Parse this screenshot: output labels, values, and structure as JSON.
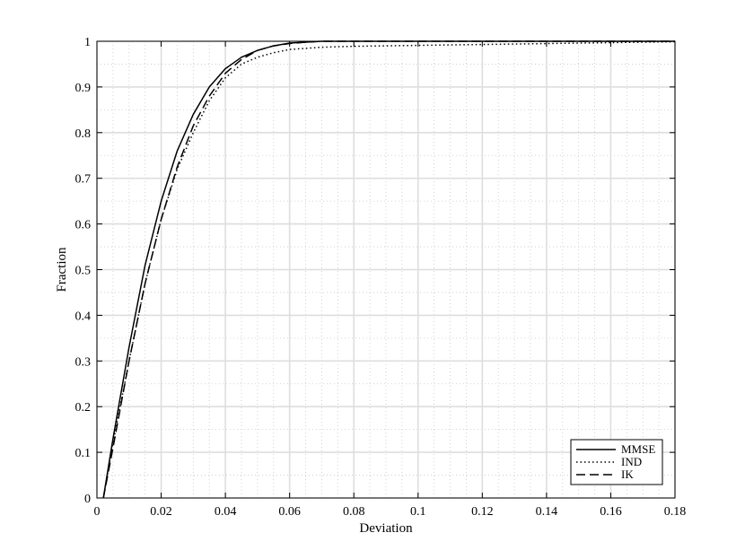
{
  "chart_data": {
    "type": "line",
    "title": "",
    "xlabel": "Deviation",
    "ylabel": "Fraction",
    "xlim": [
      0,
      0.18
    ],
    "ylim": [
      0,
      1
    ],
    "xticks": [
      0,
      0.02,
      0.04,
      0.06,
      0.08,
      0.1,
      0.12,
      0.14,
      0.16,
      0.18
    ],
    "xtick_labels": [
      "0",
      "0.02",
      "0.04",
      "0.06",
      "0.08",
      "0.1",
      "0.12",
      "0.14",
      "0.16",
      "0.18"
    ],
    "yticks": [
      0,
      0.1,
      0.2,
      0.3,
      0.4,
      0.5,
      0.6,
      0.7,
      0.8,
      0.9,
      1
    ],
    "ytick_labels": [
      "0",
      "0.1",
      "0.2",
      "0.3",
      "0.4",
      "0.5",
      "0.6",
      "0.7",
      "0.8",
      "0.9",
      "1"
    ],
    "grid": true,
    "minor_grid": true,
    "legend_position": "bottom-right",
    "series": [
      {
        "name": "MMSE",
        "style": "solid",
        "color": "#000000",
        "points": [
          [
            0.002,
            0.0
          ],
          [
            0.005,
            0.13
          ],
          [
            0.01,
            0.33
          ],
          [
            0.015,
            0.51
          ],
          [
            0.02,
            0.65
          ],
          [
            0.025,
            0.76
          ],
          [
            0.03,
            0.84
          ],
          [
            0.035,
            0.9
          ],
          [
            0.04,
            0.94
          ],
          [
            0.045,
            0.965
          ],
          [
            0.05,
            0.98
          ],
          [
            0.055,
            0.99
          ],
          [
            0.06,
            0.996
          ],
          [
            0.065,
            0.998
          ],
          [
            0.07,
            1.0
          ],
          [
            0.1,
            1.0
          ],
          [
            0.18,
            1.0
          ]
        ]
      },
      {
        "name": "IND",
        "style": "dotted",
        "color": "#000000",
        "points": [
          [
            0.002,
            0.0
          ],
          [
            0.005,
            0.12
          ],
          [
            0.01,
            0.3
          ],
          [
            0.015,
            0.47
          ],
          [
            0.02,
            0.61
          ],
          [
            0.025,
            0.72
          ],
          [
            0.03,
            0.8
          ],
          [
            0.035,
            0.87
          ],
          [
            0.04,
            0.92
          ],
          [
            0.045,
            0.95
          ],
          [
            0.05,
            0.965
          ],
          [
            0.055,
            0.975
          ],
          [
            0.06,
            0.982
          ],
          [
            0.07,
            0.987
          ],
          [
            0.08,
            0.989
          ],
          [
            0.1,
            0.991
          ],
          [
            0.12,
            0.993
          ],
          [
            0.14,
            0.995
          ],
          [
            0.16,
            0.997
          ],
          [
            0.18,
            0.999
          ]
        ]
      },
      {
        "name": "IK",
        "style": "dashed",
        "color": "#000000",
        "points": [
          [
            0.002,
            0.0
          ],
          [
            0.005,
            0.11
          ],
          [
            0.01,
            0.3
          ],
          [
            0.015,
            0.47
          ],
          [
            0.02,
            0.61
          ],
          [
            0.025,
            0.725
          ],
          [
            0.03,
            0.815
          ],
          [
            0.035,
            0.88
          ],
          [
            0.04,
            0.93
          ],
          [
            0.045,
            0.96
          ],
          [
            0.05,
            0.98
          ],
          [
            0.055,
            0.99
          ],
          [
            0.06,
            0.995
          ],
          [
            0.065,
            0.998
          ],
          [
            0.07,
            1.0
          ],
          [
            0.1,
            1.0
          ],
          [
            0.18,
            1.0
          ]
        ]
      }
    ]
  }
}
